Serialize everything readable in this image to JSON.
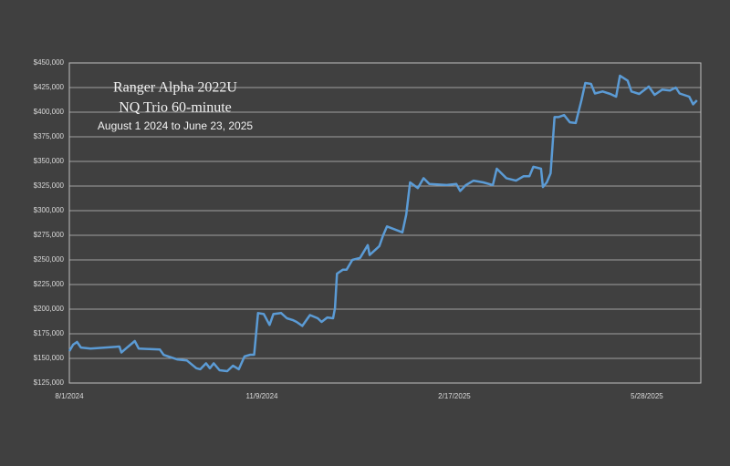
{
  "chart_data": {
    "type": "line",
    "title": "Ranger Alpha 2022U",
    "subtitle": "NQ Trio 60-minute",
    "annotation": "August 1 2024 to June 23, 2025",
    "x": [
      "8/1/2024",
      "8/3/2024",
      "8/5/2024",
      "8/7/2024",
      "8/12/2024",
      "8/27/2024",
      "8/28/2024",
      "8/31/2024",
      "9/4/2024",
      "9/6/2024",
      "9/17/2024",
      "9/19/2024",
      "9/26/2024",
      "10/1/2024",
      "10/6/2024",
      "10/8/2024",
      "10/11/2024",
      "10/13/2024",
      "10/15/2024",
      "10/18/2024",
      "10/22/2024",
      "10/25/2024",
      "10/28/2024",
      "10/31/2024",
      "11/3/2024",
      "11/5/2024",
      "11/7/2024",
      "11/10/2024",
      "11/13/2024",
      "11/15/2024",
      "11/19/2024",
      "11/22/2024",
      "11/25/2024",
      "11/27/2024",
      "11/30/2024",
      "12/4/2024",
      "12/8/2024",
      "12/10/2024",
      "12/13/2024",
      "12/16/2024",
      "12/17/2024",
      "12/18/2024",
      "12/21/2024",
      "12/23/2024",
      "12/26/2024",
      "12/30/2024",
      "1/3/2025",
      "1/4/2025",
      "1/9/2025",
      "1/11/2025",
      "1/13/2025",
      "1/21/2025",
      "1/23/2025",
      "1/25/2025",
      "1/29/2025",
      "2/1/2025",
      "2/4/2025",
      "2/13/2025",
      "2/18/2025",
      "2/20/2025",
      "2/23/2025",
      "2/27/2025",
      "3/4/2025",
      "3/9/2025",
      "3/11/2025",
      "3/16/2025",
      "3/21/2025",
      "3/25/2025",
      "3/28/2025",
      "3/30/2025",
      "4/3/2025",
      "4/4/2025",
      "4/6/2025",
      "4/8/2025",
      "4/10/2025",
      "4/12/2025",
      "4/15/2025",
      "4/18/2025",
      "4/21/2025",
      "4/24/2025",
      "4/26/2025",
      "4/29/2025",
      "5/1/2025",
      "5/5/2025",
      "5/9/2025",
      "5/12/2025",
      "5/14/2025",
      "5/18/2025",
      "5/20/2025",
      "5/24/2025",
      "5/29/2025",
      "6/1/2025",
      "6/5/2025",
      "6/9/2025",
      "6/12/2025",
      "6/14/2025",
      "6/19/2025",
      "6/21/2025",
      "6/23/2025"
    ],
    "series": [
      {
        "color": "#5b9bd5",
        "values": [
          157400,
          164000,
          166700,
          161000,
          160000,
          162000,
          156000,
          161000,
          167600,
          160000,
          159000,
          153500,
          149000,
          148000,
          140000,
          139000,
          145000,
          140000,
          145000,
          138000,
          137000,
          142600,
          139000,
          152000,
          153700,
          153700,
          196000,
          195000,
          184000,
          195000,
          196000,
          190700,
          189000,
          187000,
          183000,
          194000,
          190700,
          187000,
          191600,
          190700,
          201000,
          236000,
          240000,
          240000,
          250000,
          252000,
          265000,
          255000,
          264000,
          275000,
          284000,
          278000,
          296000,
          328700,
          323000,
          333000,
          327000,
          326000,
          327000,
          320000,
          326000,
          330500,
          328700,
          326000,
          342600,
          333000,
          330500,
          335000,
          335000,
          344500,
          342600,
          324000,
          328700,
          338000,
          395000,
          395000,
          397000,
          389700,
          389000,
          412000,
          429600,
          428700,
          419000,
          421000,
          418500,
          415700,
          437000,
          432000,
          421000,
          418500,
          426000,
          417600,
          423000,
          422000,
          425000,
          419000,
          415700,
          408000,
          412000
        ]
      }
    ],
    "xlim": [
      "8/1/2024",
      "6/25/2025"
    ],
    "xticks": [
      "8/1/2024",
      "11/9/2024",
      "2/17/2025",
      "5/28/2025"
    ],
    "ylim": [
      125000,
      450000
    ],
    "yticks": [
      {
        "value": 125000,
        "label": "$125,000"
      },
      {
        "value": 150000,
        "label": "$150,000"
      },
      {
        "value": 175000,
        "label": "$175,000"
      },
      {
        "value": 200000,
        "label": "$200,000"
      },
      {
        "value": 225000,
        "label": "$225,000"
      },
      {
        "value": 250000,
        "label": "$250,000"
      },
      {
        "value": 275000,
        "label": "$275,000"
      },
      {
        "value": 300000,
        "label": "$300,000"
      },
      {
        "value": 325000,
        "label": "$325,000"
      },
      {
        "value": 350000,
        "label": "$350,000"
      },
      {
        "value": 375000,
        "label": "$375,000"
      },
      {
        "value": 400000,
        "label": "$400,000"
      },
      {
        "value": 425000,
        "label": "$425,000"
      },
      {
        "value": 450000,
        "label": "$450,000"
      }
    ],
    "grid": true
  }
}
